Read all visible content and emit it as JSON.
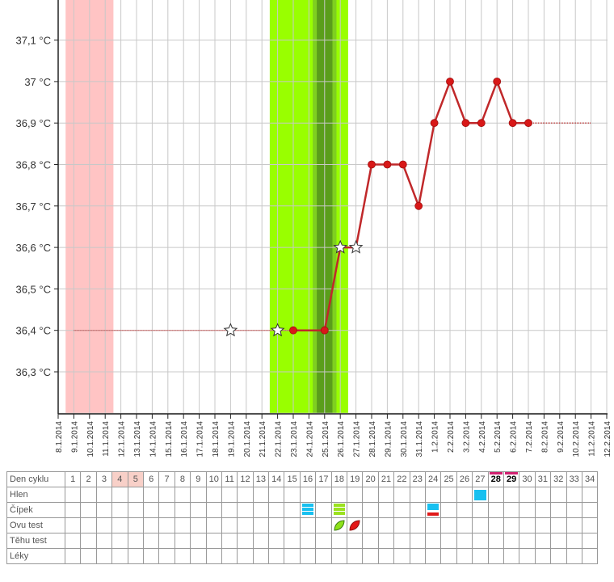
{
  "chart_data": {
    "type": "line",
    "y_ticks": [
      "36,3 °C",
      "36,4 °C",
      "36,5 °C",
      "36,6 °C",
      "36,7 °C",
      "36,8 °C",
      "36,9 °C",
      "37 °C",
      "37,1 °C"
    ],
    "y_tick_values": [
      36.3,
      36.4,
      36.5,
      36.6,
      36.7,
      36.8,
      36.9,
      37.0,
      37.1
    ],
    "ylim": [
      36.2,
      37.2
    ],
    "x_labels": [
      "8.1.2014",
      "9.1.2014",
      "10.1.2014",
      "11.1.2014",
      "12.1.2014",
      "13.1.2014",
      "14.1.2014",
      "15.1.2014",
      "16.1.2014",
      "17.1.2014",
      "18.1.2014",
      "19.1.2014",
      "20.1.2014",
      "21.1.2014",
      "22.1.2014",
      "23.1.2014",
      "24.1.2014",
      "25.1.2014",
      "26.1.2014",
      "27.1.2014",
      "28.1.2014",
      "29.1.2014",
      "30.1.2014",
      "31.1.2014",
      "1.2.2014",
      "2.2.2014",
      "3.2.2014",
      "4.2.2014",
      "5.2.2014",
      "6.2.2014",
      "7.2.2014",
      "8.2.2014",
      "9.2.2014",
      "10.2.2014",
      "11.2.2014",
      "12.2.2014"
    ],
    "period_days": [
      "9.1.2014",
      "10.1.2014",
      "11.1.2014"
    ],
    "fertile_window": [
      "22.1.2014",
      "26.1.2014"
    ],
    "peak_day": "25.1.2014",
    "baseline": {
      "value": 36.4,
      "from": "9.1.2014",
      "to": "25.1.2014"
    },
    "coverline": {
      "value": 36.9,
      "from": "7.2.2014",
      "to": "11.2.2014"
    },
    "series": [
      {
        "values": [
          {
            "x": "19.1.2014",
            "y": 36.4,
            "marker": "star"
          },
          {
            "x": "22.1.2014",
            "y": 36.4,
            "marker": "star"
          },
          {
            "x": "23.1.2014",
            "y": 36.4,
            "marker": "dot"
          },
          {
            "x": "25.1.2014",
            "y": 36.4,
            "marker": "dot"
          },
          {
            "x": "26.1.2014",
            "y": 36.6,
            "marker": "star"
          },
          {
            "x": "27.1.2014",
            "y": 36.6,
            "marker": "star"
          },
          {
            "x": "28.1.2014",
            "y": 36.8,
            "marker": "dot"
          },
          {
            "x": "29.1.2014",
            "y": 36.8,
            "marker": "dot"
          },
          {
            "x": "30.1.2014",
            "y": 36.8,
            "marker": "dot"
          },
          {
            "x": "31.1.2014",
            "y": 36.7,
            "marker": "dot"
          },
          {
            "x": "1.2.2014",
            "y": 36.9,
            "marker": "dot"
          },
          {
            "x": "2.2.2014",
            "y": 37.0,
            "marker": "dot"
          },
          {
            "x": "3.2.2014",
            "y": 36.9,
            "marker": "dot"
          },
          {
            "x": "4.2.2014",
            "y": 36.9,
            "marker": "dot"
          },
          {
            "x": "5.2.2014",
            "y": 37.0,
            "marker": "dot"
          },
          {
            "x": "6.2.2014",
            "y": 36.9,
            "marker": "dot"
          },
          {
            "x": "7.2.2014",
            "y": 36.9,
            "marker": "dot"
          }
        ]
      }
    ],
    "colors": {
      "line": "#c0282a",
      "period": "#ffc4c4",
      "fertile": "#99ff00",
      "fertile_mid": "#7fd020",
      "peak": "#5a9e1a"
    }
  },
  "table": {
    "rows": [
      {
        "label": "Den cyklu"
      },
      {
        "label": "Hlen"
      },
      {
        "label": "Čípek"
      },
      {
        "label": "Ovu test"
      },
      {
        "label": "Těhu test"
      },
      {
        "label": "Léky"
      }
    ],
    "days": [
      "1",
      "2",
      "3",
      "4",
      "5",
      "6",
      "7",
      "8",
      "9",
      "10",
      "11",
      "12",
      "13",
      "14",
      "15",
      "16",
      "17",
      "18",
      "19",
      "20",
      "21",
      "22",
      "23",
      "24",
      "25",
      "26",
      "27",
      "28",
      "29",
      "30",
      "31",
      "32",
      "33",
      "34"
    ],
    "period_days": [
      "4",
      "5"
    ],
    "highlight_days": [
      "28",
      "29"
    ],
    "hlen": [
      {
        "day": "27",
        "symbol": "blue-block"
      }
    ],
    "cipek": [
      {
        "day": "16",
        "symbol": "blue-lines"
      },
      {
        "day": "18",
        "symbol": "green-lines"
      },
      {
        "day": "24",
        "symbol": "blue-lines-red"
      }
    ],
    "ovu_test": [
      {
        "day": "18",
        "symbol": "green-leaf-icon"
      },
      {
        "day": "19",
        "symbol": "red-leaf-icon"
      }
    ]
  }
}
